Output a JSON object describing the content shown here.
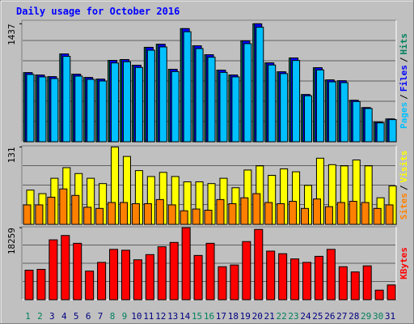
{
  "chart_data": {
    "type": "bar",
    "title": "Daily usage for October 2016",
    "legend_separator": "/",
    "categories": [
      "1",
      "2",
      "3",
      "4",
      "5",
      "6",
      "7",
      "8",
      "9",
      "10",
      "11",
      "12",
      "13",
      "14",
      "15",
      "16",
      "17",
      "18",
      "19",
      "20",
      "21",
      "22",
      "23",
      "24",
      "25",
      "26",
      "27",
      "28",
      "29",
      "30",
      "31"
    ],
    "category_colors": [
      "#00805c",
      "#00805c",
      "#000080",
      "#000080",
      "#000080",
      "#000080",
      "#000080",
      "#00805c",
      "#00805c",
      "#000080",
      "#000080",
      "#000080",
      "#000080",
      "#000080",
      "#00805c",
      "#00805c",
      "#000080",
      "#000080",
      "#000080",
      "#000080",
      "#000080",
      "#00805c",
      "#00805c",
      "#000080",
      "#000080",
      "#000080",
      "#000080",
      "#000080",
      "#00805c",
      "#00805c",
      "#000080"
    ],
    "panels": [
      {
        "ylim": [
          0,
          1480
        ],
        "yticks": [
          1437
        ],
        "series": [
          {
            "name": "Pages",
            "color": "#00c0ff",
            "values": [
              820,
              790,
              770,
              1040,
              800,
              760,
              740,
              960,
              975,
              905,
              1115,
              1155,
              855,
              1340,
              1135,
              1030,
              845,
              790,
              1195,
              1395,
              935,
              830,
              990,
              560,
              875,
              730,
              720,
              490,
              405,
              230,
              270
            ]
          },
          {
            "name": "Files",
            "color": "#0000ff",
            "values": [
              842,
              813,
              793,
              1070,
              823,
              783,
              763,
              991,
              1001,
              932,
              1150,
              1189,
              882,
              1378,
              1169,
              1060,
              872,
              813,
              1229,
              1437,
              961,
              852,
              1021,
              575,
              902,
              753,
              743,
              505,
              416,
              238,
              278
            ]
          },
          {
            "name": "Hits",
            "color": "#00805c",
            "values": [
              842,
              813,
              793,
              1070,
              823,
              783,
              763,
              991,
              1001,
              932,
              1150,
              1189,
              882,
              1378,
              1169,
              1060,
              872,
              813,
              1229,
              1437,
              961,
              852,
              1021,
              575,
              902,
              753,
              743,
              505,
              416,
              238,
              278
            ]
          }
        ]
      },
      {
        "ylim": [
          0,
          133
        ],
        "yticks": [
          131
        ],
        "series": [
          {
            "name": "Sites",
            "color": "#ff8000",
            "values": [
              33,
              33,
              46,
              60,
              49,
              29,
              27,
              37,
              37,
              35,
              35,
              42,
              33,
              23,
              26,
              24,
              42,
              35,
              45,
              52,
              37,
              35,
              39,
              27,
              43,
              30,
              37,
              39,
              37,
              27,
              33
            ]
          },
          {
            "name": "Visits",
            "color": "#ffff00",
            "values": [
              58,
              52,
              78,
              96,
              86,
              78,
              69,
              131,
              115,
              91,
              81,
              88,
              81,
              72,
              72,
              69,
              78,
              62,
              92,
              99,
              83,
              94,
              89,
              66,
              112,
              101,
              99,
              109,
              99,
              45,
              65
            ]
          }
        ]
      },
      {
        "ylim": [
          0,
          18480
        ],
        "yticks": [
          18259
        ],
        "series": [
          {
            "name": "KBytes",
            "color": "#ff0000",
            "values": [
              7479,
              7699,
              15178,
              16278,
              14299,
              7259,
              9459,
              12759,
              12539,
              10119,
              11439,
              13418,
              14518,
              18259,
              11219,
              14299,
              8359,
              8799,
              14738,
              17818,
              12319,
              11659,
              10339,
              9459,
              10999,
              12759,
              8359,
              7039,
              8579,
              2420,
              3740
            ]
          }
        ]
      }
    ]
  }
}
